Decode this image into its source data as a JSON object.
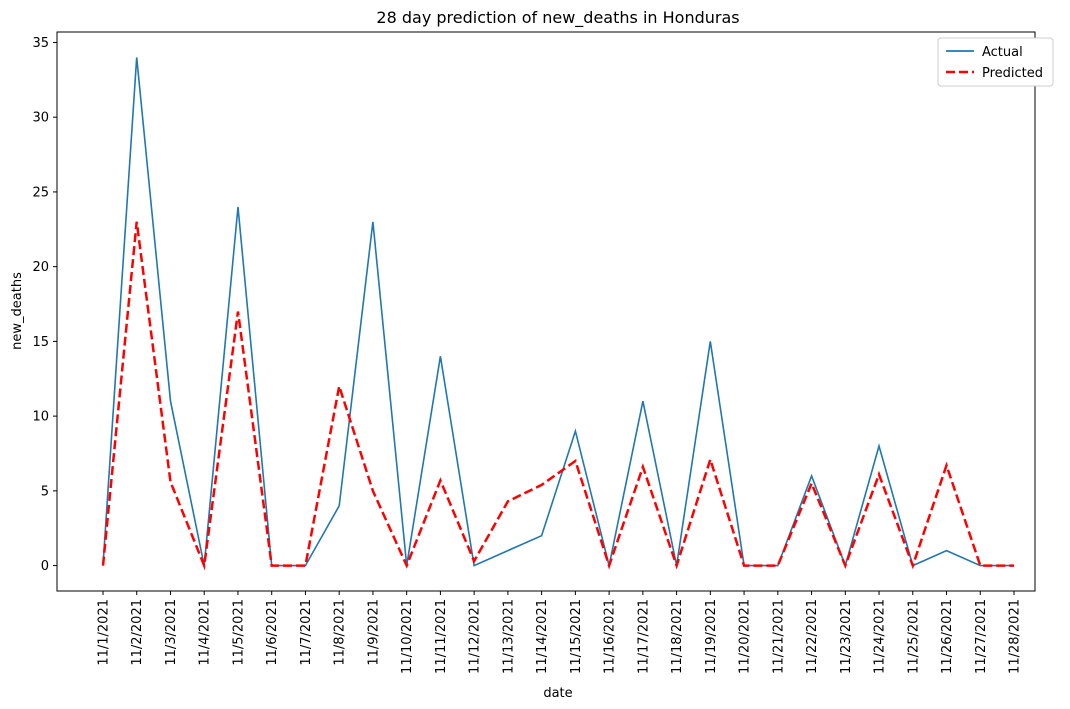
{
  "chart_data": {
    "type": "line",
    "title": "28 day prediction of new_deaths in Honduras",
    "xlabel": "date",
    "ylabel": "new_deaths",
    "ylim": [
      -1.7,
      35.7
    ],
    "yticks": [
      0,
      5,
      10,
      15,
      20,
      25,
      30,
      35
    ],
    "grid": false,
    "legend_position": "top-right",
    "categories": [
      "11/1/2021",
      "11/2/2021",
      "11/3/2021",
      "11/4/2021",
      "11/5/2021",
      "11/6/2021",
      "11/7/2021",
      "11/8/2021",
      "11/9/2021",
      "11/10/2021",
      "11/11/2021",
      "11/12/2021",
      "11/13/2021",
      "11/14/2021",
      "11/15/2021",
      "11/16/2021",
      "11/17/2021",
      "11/18/2021",
      "11/19/2021",
      "11/20/2021",
      "11/21/2021",
      "11/22/2021",
      "11/23/2021",
      "11/24/2021",
      "11/25/2021",
      "11/26/2021",
      "11/27/2021",
      "11/28/2021"
    ],
    "series": [
      {
        "name": "Actual",
        "color": "#1f77b4",
        "style": "solid",
        "values": [
          0,
          34,
          11,
          0,
          24,
          0,
          0,
          4,
          23,
          0,
          14,
          0,
          1,
          2,
          9,
          0,
          11,
          0,
          15,
          0,
          0,
          6,
          0,
          8,
          0,
          1,
          0,
          0
        ]
      },
      {
        "name": "Predicted",
        "color": "#ff0000",
        "style": "dashed",
        "values": [
          0,
          23,
          5.6,
          0,
          17,
          0,
          0,
          12,
          5,
          0,
          5.7,
          0.3,
          4.3,
          5.4,
          7,
          0,
          6.6,
          0,
          7.1,
          0,
          0,
          5.5,
          0,
          6.1,
          0,
          6.7,
          0,
          0
        ]
      }
    ]
  }
}
